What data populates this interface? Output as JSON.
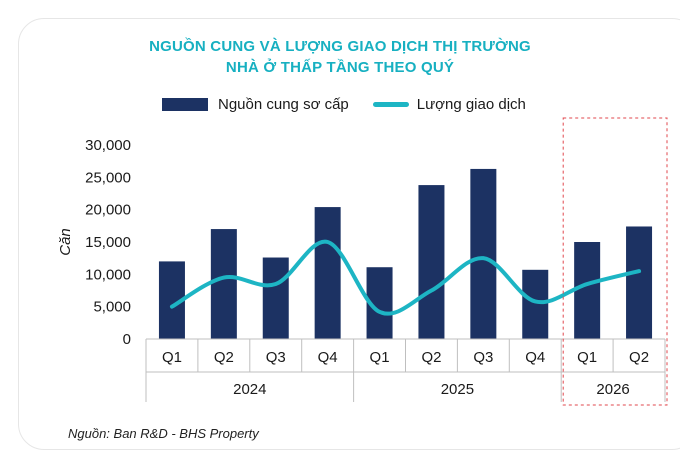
{
  "chart_data": {
    "type": "bar",
    "title": [
      "NGUỒN CUNG VÀ LƯỢNG GIAO DỊCH THỊ TRƯỜNG",
      "NHÀ Ở THẤP TẦNG THEO QUÝ"
    ],
    "ylabel": "Căn",
    "ylim": [
      0,
      30000
    ],
    "yticks": [
      "0",
      "5,000",
      "10,000",
      "15,000",
      "20,000",
      "25,000",
      "30,000"
    ],
    "categories": [
      "Q1",
      "Q2",
      "Q3",
      "Q4",
      "Q1",
      "Q2",
      "Q3",
      "Q4",
      "Q1",
      "Q2"
    ],
    "groups": [
      {
        "label": "2024",
        "count": 4
      },
      {
        "label": "2025",
        "count": 4
      },
      {
        "label": "2026",
        "count": 2
      }
    ],
    "series": [
      {
        "name": "Nguồn cung sơ cấp",
        "kind": "bar",
        "color": "#1c3263",
        "values": [
          12000,
          17000,
          12600,
          20400,
          11100,
          23800,
          26300,
          10700,
          15000,
          17400
        ]
      },
      {
        "name": "Lượng giao dịch",
        "kind": "line",
        "color": "#1db5c4",
        "values": [
          5000,
          9500,
          8500,
          15000,
          4200,
          7500,
          12500,
          5800,
          8500,
          10500
        ]
      }
    ],
    "legend": "top",
    "grid": false,
    "highlight_group": "2026"
  },
  "source": "Nguồn: Ban R&D - BHS Property"
}
